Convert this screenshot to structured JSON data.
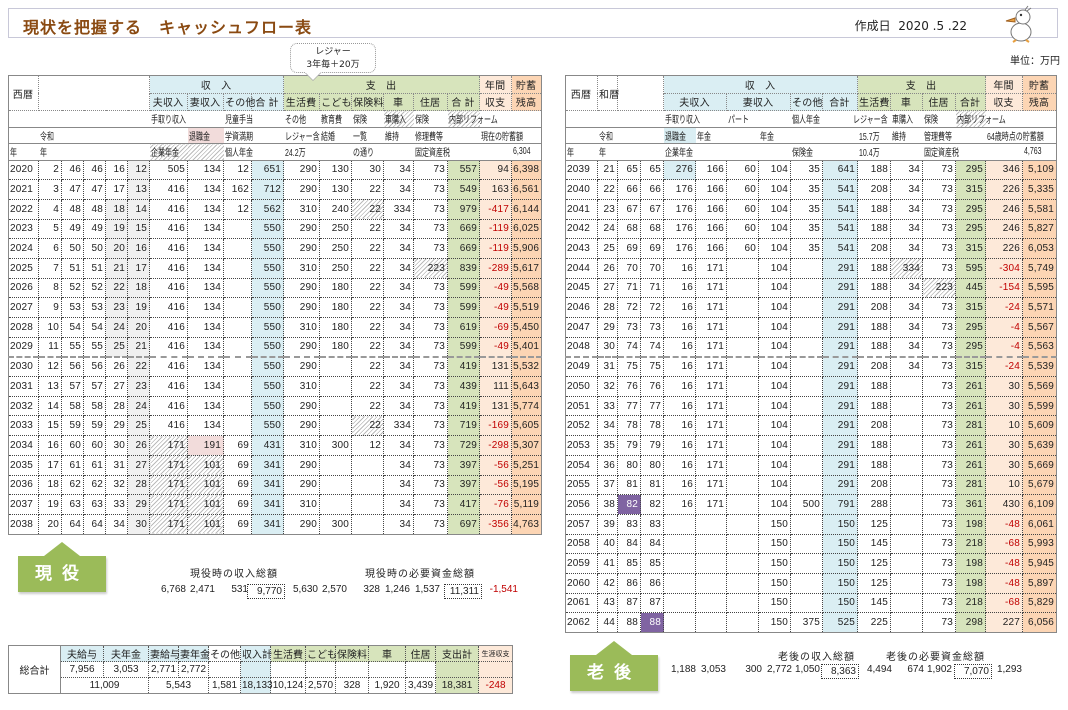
{
  "header": {
    "title": "現状を把握する　キャッシュフロー表",
    "date_label": "作成日",
    "date": "2020 .5 .22",
    "unit": "単位：万円"
  },
  "callout": {
    "line1": "レジャー",
    "line2": "3年毎＋20万"
  },
  "colors": {
    "income": "#daeef3",
    "expense": "#d7e4bc",
    "balance": "#fde9d9",
    "savings": "#fcd5b4",
    "badge": "#9bbb59",
    "negative": "#c00000",
    "title": "#8a4a12",
    "highlight": "#8064a2"
  },
  "left": {
    "h_year": "西暦",
    "h_income": "収　入",
    "h_expense": "支　出",
    "h_annual1": "年間",
    "h_annual2": "収支",
    "h_sav1": "貯蓄",
    "h_sav2": "残高",
    "sub": [
      "夫収入",
      "妻収入",
      "その他",
      "合 計",
      "生活費",
      "こども",
      "保険料",
      "車",
      "住居",
      "合 計"
    ],
    "notes": [
      [
        "",
        "",
        "",
        "",
        "",
        "",
        "手取り収入",
        "",
        "児童手当",
        "",
        "その他",
        "教育費",
        "保険",
        "車購入",
        "保険",
        "内部リフォーム",
        "",
        ""
      ],
      [
        "",
        "令和",
        "",
        "",
        "",
        "",
        "",
        "退職金",
        "学資満期",
        "",
        "レジャー含",
        "結婚",
        "一覧",
        "維持",
        "修理費等",
        "",
        "現在の貯蓄額",
        ""
      ],
      [
        "年",
        "年",
        "",
        "",
        "",
        "",
        "企業年金",
        "",
        "個人年金",
        "",
        "24.2万",
        "",
        "の通り",
        "",
        "固定資産税",
        "",
        "",
        "6,304"
      ]
    ],
    "rows": [
      [
        "2020",
        "2",
        "46",
        "46",
        "16",
        "12",
        "505",
        "134",
        "12",
        "651",
        "290",
        "130",
        "30",
        "34",
        "73",
        "557",
        "94",
        "6,398"
      ],
      [
        "2021",
        "3",
        "47",
        "47",
        "17",
        "13",
        "416",
        "134",
        "162",
        "712",
        "290",
        "130",
        "22",
        "34",
        "73",
        "549",
        "163",
        "6,561"
      ],
      [
        "2022",
        "4",
        "48",
        "48",
        "18",
        "14",
        "416",
        "134",
        "12",
        "562",
        "310",
        "240",
        "22",
        "334",
        "73",
        "979",
        "-417",
        "6,144"
      ],
      [
        "2023",
        "5",
        "49",
        "49",
        "19",
        "15",
        "416",
        "134",
        "",
        "550",
        "290",
        "250",
        "22",
        "34",
        "73",
        "669",
        "-119",
        "6,025"
      ],
      [
        "2024",
        "6",
        "50",
        "50",
        "20",
        "16",
        "416",
        "134",
        "",
        "550",
        "290",
        "250",
        "22",
        "34",
        "73",
        "669",
        "-119",
        "5,906"
      ],
      [
        "2025",
        "7",
        "51",
        "51",
        "21",
        "17",
        "416",
        "134",
        "",
        "550",
        "310",
        "250",
        "22",
        "34",
        "223",
        "839",
        "-289",
        "5,617"
      ],
      [
        "2026",
        "8",
        "52",
        "52",
        "22",
        "18",
        "416",
        "134",
        "",
        "550",
        "290",
        "180",
        "22",
        "34",
        "73",
        "599",
        "-49",
        "5,568"
      ],
      [
        "2027",
        "9",
        "53",
        "53",
        "23",
        "19",
        "416",
        "134",
        "",
        "550",
        "290",
        "180",
        "22",
        "34",
        "73",
        "599",
        "-49",
        "5,519"
      ],
      [
        "2028",
        "10",
        "54",
        "54",
        "24",
        "20",
        "416",
        "134",
        "",
        "550",
        "310",
        "180",
        "22",
        "34",
        "73",
        "619",
        "-69",
        "5,450"
      ],
      [
        "2029",
        "11",
        "55",
        "55",
        "25",
        "21",
        "416",
        "134",
        "",
        "550",
        "290",
        "180",
        "22",
        "34",
        "73",
        "599",
        "-49",
        "5,401"
      ],
      [
        "2030",
        "12",
        "56",
        "56",
        "26",
        "22",
        "416",
        "134",
        "",
        "550",
        "290",
        "",
        "22",
        "34",
        "73",
        "419",
        "131",
        "5,532"
      ],
      [
        "2031",
        "13",
        "57",
        "57",
        "27",
        "23",
        "416",
        "134",
        "",
        "550",
        "310",
        "",
        "22",
        "34",
        "73",
        "439",
        "111",
        "5,643"
      ],
      [
        "2032",
        "14",
        "58",
        "58",
        "28",
        "24",
        "416",
        "134",
        "",
        "550",
        "290",
        "",
        "22",
        "34",
        "73",
        "419",
        "131",
        "5,774"
      ],
      [
        "2033",
        "15",
        "59",
        "59",
        "29",
        "25",
        "416",
        "134",
        "",
        "550",
        "290",
        "",
        "22",
        "334",
        "73",
        "719",
        "-169",
        "5,605"
      ],
      [
        "2034",
        "16",
        "60",
        "60",
        "30",
        "26",
        "171",
        "191",
        "69",
        "431",
        "310",
        "300",
        "12",
        "34",
        "73",
        "729",
        "-298",
        "5,307"
      ],
      [
        "2035",
        "17",
        "61",
        "61",
        "31",
        "27",
        "171",
        "101",
        "69",
        "341",
        "290",
        "",
        "",
        "34",
        "73",
        "397",
        "-56",
        "5,251"
      ],
      [
        "2036",
        "18",
        "62",
        "62",
        "32",
        "28",
        "171",
        "101",
        "69",
        "341",
        "290",
        "",
        "",
        "34",
        "73",
        "397",
        "-56",
        "5,195"
      ],
      [
        "2037",
        "19",
        "63",
        "63",
        "33",
        "29",
        "171",
        "101",
        "69",
        "341",
        "310",
        "",
        "",
        "34",
        "73",
        "417",
        "-76",
        "5,119"
      ],
      [
        "2038",
        "20",
        "64",
        "64",
        "34",
        "30",
        "171",
        "101",
        "69",
        "341",
        "290",
        "300",
        "",
        "34",
        "73",
        "697",
        "-356",
        "4,763"
      ]
    ]
  },
  "right": {
    "h_year": "西暦",
    "h_wareki": "和暦",
    "h_income": "収　入",
    "h_expense": "支　出",
    "h_annual1": "年間",
    "h_annual2": "収支",
    "h_sav1": "貯蓄",
    "h_sav2": "残高",
    "sub": [
      "夫収入",
      "妻収入",
      "その他",
      "合計",
      "生活費",
      "車",
      "住居",
      "合計"
    ],
    "notes": [
      [
        "",
        "",
        "",
        "",
        "手取り収入",
        "",
        "パート",
        "",
        "個人年金",
        "",
        "レジャー含",
        "車購入",
        "保険",
        "内部リフォーム",
        "",
        ""
      ],
      [
        "",
        "令和",
        "",
        "",
        "退職金",
        "年金",
        "",
        "年金",
        "",
        "",
        "15.7万",
        "維持",
        "管理費等",
        "",
        "64歳時点の貯蓄額",
        ""
      ],
      [
        "年",
        "年",
        "",
        "",
        "企業年金",
        "",
        "",
        "",
        "保険金",
        "",
        "10.4万",
        "",
        "固定資産税",
        "",
        "",
        "4,763"
      ]
    ],
    "rows": [
      [
        "2039",
        "21",
        "65",
        "65",
        "276",
        "166",
        "60",
        "104",
        "35",
        "641",
        "188",
        "34",
        "73",
        "295",
        "346",
        "5,109"
      ],
      [
        "2040",
        "22",
        "66",
        "66",
        "176",
        "166",
        "60",
        "104",
        "35",
        "541",
        "208",
        "34",
        "73",
        "315",
        "226",
        "5,335"
      ],
      [
        "2041",
        "23",
        "67",
        "67",
        "176",
        "166",
        "60",
        "104",
        "35",
        "541",
        "188",
        "34",
        "73",
        "295",
        "246",
        "5,581"
      ],
      [
        "2042",
        "24",
        "68",
        "68",
        "176",
        "166",
        "60",
        "104",
        "35",
        "541",
        "188",
        "34",
        "73",
        "295",
        "246",
        "5,827"
      ],
      [
        "2043",
        "25",
        "69",
        "69",
        "176",
        "166",
        "60",
        "104",
        "35",
        "541",
        "208",
        "34",
        "73",
        "315",
        "226",
        "6,053"
      ],
      [
        "2044",
        "26",
        "70",
        "70",
        "16",
        "171",
        "",
        "104",
        "",
        "291",
        "188",
        "334",
        "73",
        "595",
        "-304",
        "5,749"
      ],
      [
        "2045",
        "27",
        "71",
        "71",
        "16",
        "171",
        "",
        "104",
        "",
        "291",
        "188",
        "34",
        "223",
        "445",
        "-154",
        "5,595"
      ],
      [
        "2046",
        "28",
        "72",
        "72",
        "16",
        "171",
        "",
        "104",
        "",
        "291",
        "208",
        "34",
        "73",
        "315",
        "-24",
        "5,571"
      ],
      [
        "2047",
        "29",
        "73",
        "73",
        "16",
        "171",
        "",
        "104",
        "",
        "291",
        "188",
        "34",
        "73",
        "295",
        "-4",
        "5,567"
      ],
      [
        "2048",
        "30",
        "74",
        "74",
        "16",
        "171",
        "",
        "104",
        "",
        "291",
        "188",
        "34",
        "73",
        "295",
        "-4",
        "5,563"
      ],
      [
        "2049",
        "31",
        "75",
        "75",
        "16",
        "171",
        "",
        "104",
        "",
        "291",
        "208",
        "34",
        "73",
        "315",
        "-24",
        "5,539"
      ],
      [
        "2050",
        "32",
        "76",
        "76",
        "16",
        "171",
        "",
        "104",
        "",
        "291",
        "188",
        "",
        "73",
        "261",
        "30",
        "5,569"
      ],
      [
        "2051",
        "33",
        "77",
        "77",
        "16",
        "171",
        "",
        "104",
        "",
        "291",
        "188",
        "",
        "73",
        "261",
        "30",
        "5,599"
      ],
      [
        "2052",
        "34",
        "78",
        "78",
        "16",
        "171",
        "",
        "104",
        "",
        "291",
        "208",
        "",
        "73",
        "281",
        "10",
        "5,609"
      ],
      [
        "2053",
        "35",
        "79",
        "79",
        "16",
        "171",
        "",
        "104",
        "",
        "291",
        "188",
        "",
        "73",
        "261",
        "30",
        "5,639"
      ],
      [
        "2054",
        "36",
        "80",
        "80",
        "16",
        "171",
        "",
        "104",
        "",
        "291",
        "188",
        "",
        "73",
        "261",
        "30",
        "5,669"
      ],
      [
        "2055",
        "37",
        "81",
        "81",
        "16",
        "171",
        "",
        "104",
        "",
        "291",
        "208",
        "",
        "73",
        "281",
        "10",
        "5,679"
      ],
      [
        "2056",
        "38",
        "82",
        "82",
        "16",
        "171",
        "",
        "104",
        "500",
        "791",
        "288",
        "",
        "73",
        "361",
        "430",
        "6,109"
      ],
      [
        "2057",
        "39",
        "83",
        "83",
        "",
        "",
        "",
        "150",
        "",
        "150",
        "125",
        "",
        "73",
        "198",
        "-48",
        "6,061"
      ],
      [
        "2058",
        "40",
        "84",
        "84",
        "",
        "",
        "",
        "150",
        "",
        "150",
        "145",
        "",
        "73",
        "218",
        "-68",
        "5,993"
      ],
      [
        "2059",
        "41",
        "85",
        "85",
        "",
        "",
        "",
        "150",
        "",
        "150",
        "125",
        "",
        "73",
        "198",
        "-48",
        "5,945"
      ],
      [
        "2060",
        "42",
        "86",
        "86",
        "",
        "",
        "",
        "150",
        "",
        "150",
        "125",
        "",
        "73",
        "198",
        "-48",
        "5,897"
      ],
      [
        "2061",
        "43",
        "87",
        "87",
        "",
        "",
        "",
        "150",
        "",
        "150",
        "145",
        "",
        "73",
        "218",
        "-68",
        "5,829"
      ],
      [
        "2062",
        "44",
        "88",
        "88",
        "",
        "",
        "",
        "150",
        "375",
        "525",
        "225",
        "",
        "73",
        "298",
        "227",
        "6,056"
      ]
    ]
  },
  "active": {
    "badge": "現役",
    "income_label": "現役時の収入総額",
    "expense_label": "現役時の必要資金総額",
    "values": [
      "6,768",
      "2,471",
      "531",
      "9,770",
      "5,630",
      "2,570",
      "328",
      "1,246",
      "1,537",
      "11,311",
      "-1,541"
    ]
  },
  "retired": {
    "badge": "老後",
    "income_label": "老後の収入総額",
    "expense_label": "老後の必要資金総額",
    "values": [
      "1,188",
      "3,053",
      "300",
      "2,772",
      "1,050",
      "8,363",
      "4,494",
      "674",
      "1,902",
      "7,070",
      "1,293"
    ]
  },
  "totals": {
    "label": "総合計",
    "headers": [
      "夫給与",
      "夫年金",
      "妻給与",
      "妻年金",
      "その他",
      "収入計",
      "生活費",
      "こども",
      "保険料",
      "車",
      "住居",
      "支出計",
      "生涯収支"
    ],
    "row1": [
      "7,956",
      "3,053",
      "2,771",
      "2,772"
    ],
    "husband_total": "11,009",
    "wife_total": "5,543",
    "rest": [
      "1,581",
      "18,133",
      "10,124",
      "2,570",
      "328",
      "1,920",
      "3,439",
      "18,381",
      "-248"
    ]
  }
}
